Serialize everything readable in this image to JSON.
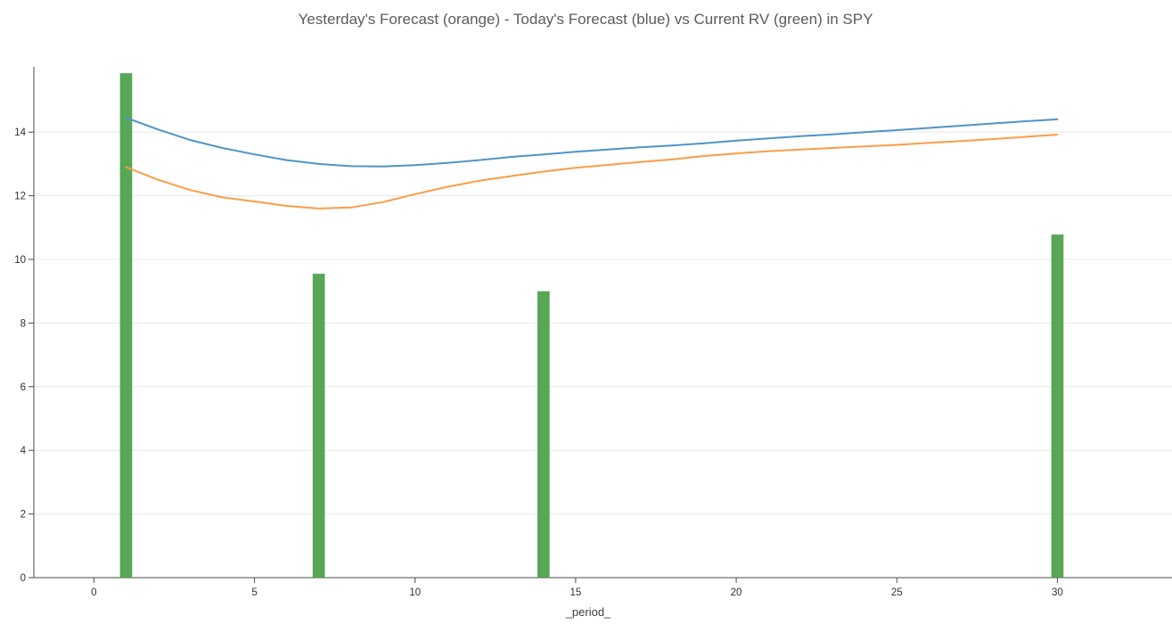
{
  "chart_data": {
    "type": "mixed",
    "title": "Yesterday's Forecast (orange) - Today's Forecast (blue) vs Current RV (green) in SPY",
    "xlabel": "_period_",
    "ylabel": "",
    "xlim": [
      -1.87,
      33.43
    ],
    "ylim": [
      0,
      16.05
    ],
    "x_ticks": [
      0,
      5,
      10,
      15,
      20,
      25,
      30
    ],
    "y_ticks": [
      0,
      2,
      4,
      6,
      8,
      10,
      12,
      14
    ],
    "grid": "horizontal",
    "legend_position": "none",
    "colors": {
      "grid": "#e8e8e8",
      "axis": "#4a4a4a",
      "title": "#5b5b5b",
      "tick": "#303030",
      "blue": "#4f94c6",
      "orange": "#fb9d45",
      "green": "#57a757"
    },
    "bars": {
      "name": "Current RV",
      "color": "#57a757",
      "width_units": 0.38,
      "points": [
        {
          "x": 1,
          "y": 15.85
        },
        {
          "x": 7,
          "y": 9.55
        },
        {
          "x": 14,
          "y": 9.0
        },
        {
          "x": 30,
          "y": 10.78
        }
      ]
    },
    "series": [
      {
        "id": "todays-forecast",
        "name": "Today's Forecast",
        "color": "#4f94c6",
        "x": [
          1,
          2,
          3,
          4,
          5,
          6,
          7,
          8,
          9,
          10,
          11,
          12,
          13,
          14,
          15,
          16,
          17,
          18,
          19,
          20,
          21,
          22,
          23,
          24,
          25,
          26,
          27,
          28,
          29,
          30
        ],
        "y": [
          14.45,
          14.08,
          13.75,
          13.5,
          13.3,
          13.12,
          13.0,
          12.93,
          12.92,
          12.96,
          13.03,
          13.12,
          13.22,
          13.3,
          13.38,
          13.45,
          13.52,
          13.58,
          13.65,
          13.73,
          13.8,
          13.87,
          13.93,
          14.0,
          14.06,
          14.13,
          14.2,
          14.27,
          14.34,
          14.4
        ]
      },
      {
        "id": "yesterdays-forecast",
        "name": "Yesterday's Forecast",
        "color": "#fb9d45",
        "x": [
          1,
          2,
          3,
          4,
          5,
          6,
          7,
          8,
          9,
          10,
          11,
          12,
          13,
          14,
          15,
          16,
          17,
          18,
          19,
          20,
          21,
          22,
          23,
          24,
          25,
          26,
          27,
          28,
          29,
          30
        ],
        "y": [
          12.9,
          12.5,
          12.18,
          11.95,
          11.82,
          11.68,
          11.6,
          11.63,
          11.8,
          12.05,
          12.28,
          12.47,
          12.62,
          12.76,
          12.88,
          12.97,
          13.06,
          13.14,
          13.25,
          13.33,
          13.4,
          13.45,
          13.5,
          13.55,
          13.6,
          13.66,
          13.72,
          13.78,
          13.85,
          13.92
        ]
      }
    ]
  }
}
